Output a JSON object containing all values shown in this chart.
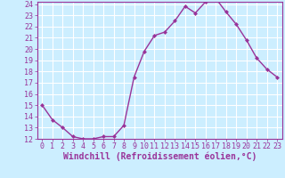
{
  "x": [
    0,
    1,
    2,
    3,
    4,
    5,
    6,
    7,
    8,
    9,
    10,
    11,
    12,
    13,
    14,
    15,
    16,
    17,
    18,
    19,
    20,
    21,
    22,
    23
  ],
  "y": [
    15.0,
    13.7,
    13.0,
    12.2,
    12.0,
    12.0,
    12.2,
    12.2,
    13.2,
    17.5,
    19.8,
    21.2,
    21.5,
    22.5,
    23.8,
    23.2,
    24.2,
    24.5,
    23.3,
    22.2,
    20.8,
    19.2,
    18.2,
    17.5
  ],
  "line_color": "#993399",
  "marker": "D",
  "marker_size": 2,
  "bg_color": "#cceeff",
  "grid_color": "#ffffff",
  "xlabel": "Windchill (Refroidissement éolien,°C)",
  "xlabel_color": "#993399",
  "tick_color": "#993399",
  "ylim": [
    12,
    24
  ],
  "xlim": [
    -0.5,
    23.5
  ],
  "yticks": [
    12,
    13,
    14,
    15,
    16,
    17,
    18,
    19,
    20,
    21,
    22,
    23,
    24
  ],
  "xticks": [
    0,
    1,
    2,
    3,
    4,
    5,
    6,
    7,
    8,
    9,
    10,
    11,
    12,
    13,
    14,
    15,
    16,
    17,
    18,
    19,
    20,
    21,
    22,
    23
  ],
  "font_name": "monospace",
  "tick_fontsize": 6,
  "xlabel_fontsize": 7,
  "linewidth": 1.0
}
